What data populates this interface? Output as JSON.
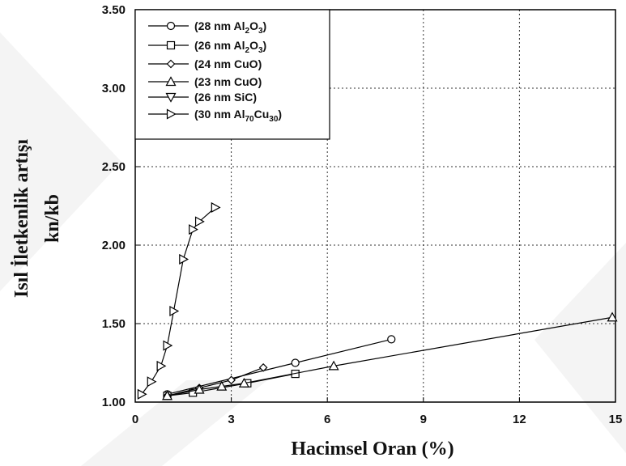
{
  "chart_data": {
    "type": "line",
    "xlabel": "Hacimsel Oran (%)",
    "ylabel": [
      "Isıl İletkenlik artışı",
      "kn/kb"
    ],
    "xlim": [
      0,
      15
    ],
    "ylim": [
      1.0,
      3.5
    ],
    "x_ticks": [
      "0",
      "3",
      "6",
      "9",
      "12",
      "15"
    ],
    "y_ticks": [
      "1.00",
      "1.50",
      "2.00",
      "2.50",
      "3.00",
      "3.50"
    ],
    "grid": true,
    "legend_position": "top-left",
    "series": [
      {
        "name": [
          {
            "t": "(28 nm Al"
          },
          {
            "t": "2",
            "s": true
          },
          {
            "t": "O"
          },
          {
            "t": "3",
            "s": true
          },
          {
            "t": ")"
          }
        ],
        "marker": "circle",
        "x": [
          1.0,
          5.0,
          8.0
        ],
        "y": [
          1.05,
          1.25,
          1.4
        ]
      },
      {
        "name": [
          {
            "t": "(26 nm Al"
          },
          {
            "t": "2",
            "s": true
          },
          {
            "t": "O"
          },
          {
            "t": "3",
            "s": true
          },
          {
            "t": ")"
          }
        ],
        "marker": "square",
        "x": [
          1.0,
          1.8,
          3.5,
          5.0
        ],
        "y": [
          1.04,
          1.06,
          1.12,
          1.18
        ]
      },
      {
        "name": [
          {
            "t": "(24 nm CuO)"
          }
        ],
        "marker": "diamond",
        "x": [
          1.0,
          2.0,
          3.0,
          4.0
        ],
        "y": [
          1.04,
          1.09,
          1.14,
          1.22
        ]
      },
      {
        "name": [
          {
            "t": "(23 nm CuO)"
          }
        ],
        "marker": "triangle-up",
        "x": [
          1.0,
          2.0,
          2.7,
          3.4,
          6.2,
          14.9
        ],
        "y": [
          1.04,
          1.08,
          1.1,
          1.12,
          1.23,
          1.54
        ]
      },
      {
        "name": [
          {
            "t": "(26 nm SiC)"
          }
        ],
        "marker": "triangle-down",
        "x": [],
        "y": []
      },
      {
        "name": [
          {
            "t": "(30 nm Al"
          },
          {
            "t": "70",
            "s": true
          },
          {
            "t": "Cu"
          },
          {
            "t": "30",
            "s": true
          },
          {
            "t": ")"
          }
        ],
        "marker": "triangle-right",
        "x": [
          0.2,
          0.5,
          0.8,
          1.0,
          1.2,
          1.5,
          1.8,
          2.0,
          2.5
        ],
        "y": [
          1.05,
          1.13,
          1.23,
          1.36,
          1.58,
          1.91,
          2.1,
          2.15,
          2.24
        ]
      }
    ]
  }
}
